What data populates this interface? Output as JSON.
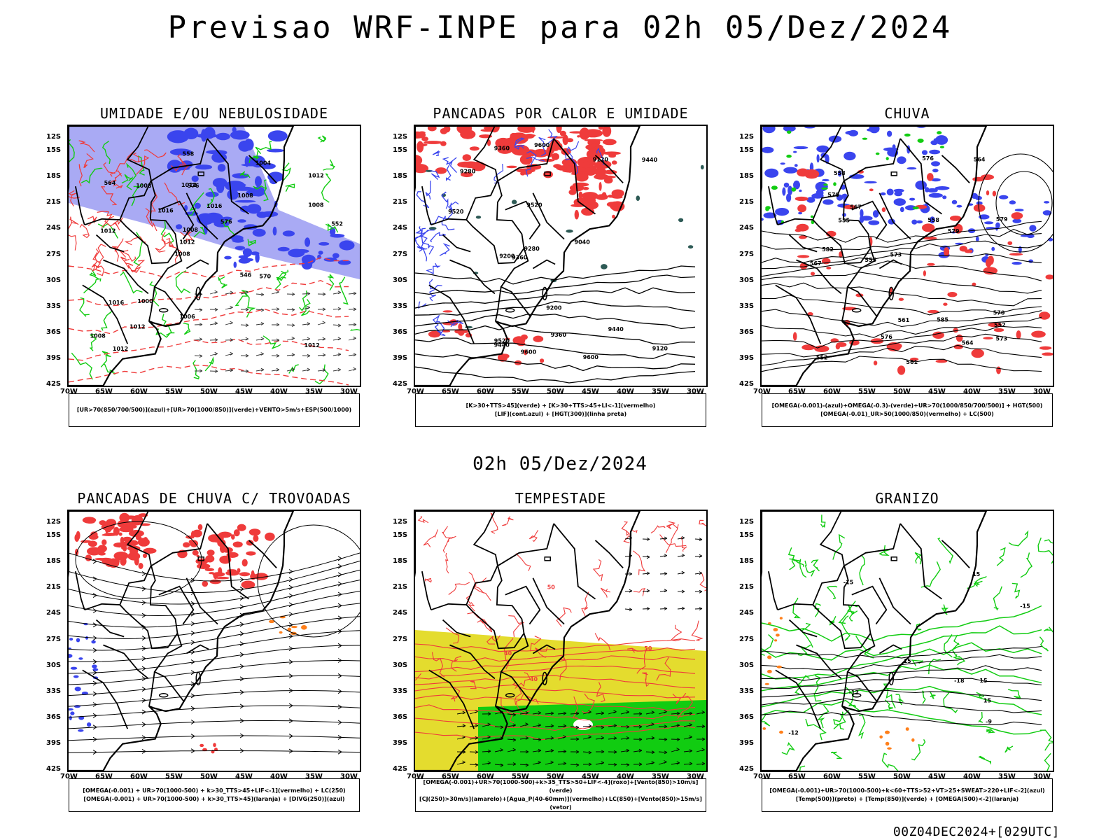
{
  "header": {
    "title": "Previsao WRF-INPE  para 02h 05/Dez/2024"
  },
  "mid_title": "02h 05/Dez/2024",
  "footer": "00Z04DEC2024+[029UTC]",
  "axes": {
    "y_labels": [
      "12S",
      "15S",
      "18S",
      "21S",
      "24S",
      "27S",
      "30S",
      "33S",
      "36S",
      "39S",
      "42S"
    ],
    "x_labels": [
      "70W",
      "65W",
      "60W",
      "55W",
      "50W",
      "45W",
      "40W",
      "35W",
      "30W"
    ]
  },
  "panels": [
    {
      "id": "umidade",
      "title": "UMIDADE E/OU NEBULOSIDADE",
      "legend": [
        "[UR>70(850/700/500)](azul)+[UR>70(1000/850)](verde)+VENTO>5m/s+ESP(500/1000)"
      ],
      "contour_labels": [
        "1012",
        "1012",
        "1012",
        "1008",
        "1008",
        "1012",
        "1012",
        "1016",
        "1016",
        "1016",
        "1008",
        "1012",
        "576",
        "576",
        "570",
        "564",
        "558",
        "552",
        "546",
        "1008",
        "1012",
        "1006",
        "1008",
        "1008",
        "1004",
        "1000"
      ]
    },
    {
      "id": "pancadas_calor",
      "title": "PANCADAS POR CALOR E UMIDADE",
      "legend": [
        "[K>30+TTS>45](verde) + [K>30+TTS>45+LI<-1](vermelho)",
        "[LIF](cont.azul) + [HGT(300)](linha preta)"
      ],
      "contour_labels": [
        "9600",
        "9600",
        "9520",
        "9440",
        "9360",
        "9280",
        "9200",
        "9120",
        "9600",
        "9520",
        "9440",
        "9360",
        "9280",
        "9200",
        "9120",
        "9040",
        "9520",
        "9440",
        "9360"
      ]
    },
    {
      "id": "chuva",
      "title": "CHUVA",
      "legend": [
        "[OMEGA(-0.001)-(azul)+OMEGA(-0.3)-(verde)+UR>70(1000/850/700/500)] + HGT(500)",
        "[OMEGA(-0.01)_UR>50(1000/850)(vermelho) + LC(500)"
      ],
      "contour_labels": [
        "585",
        "582",
        "579",
        "576",
        "573",
        "570",
        "567",
        "564",
        "561",
        "558",
        "555",
        "552",
        "579",
        "576",
        "573",
        "570",
        "567",
        "564",
        "561",
        "558",
        "555",
        "552"
      ]
    },
    {
      "id": "trovoadas",
      "title": "PANCADAS DE CHUVA C/ TROVOADAS",
      "legend": [
        "[OMEGA(-0.001) + UR>70(1000-500) + k>30_TTS>45+LIF<-1](vermelho) + LC(250)",
        "[OMEGA(-0.001) + UR>70(1000-500) + k>30_TTS>45](laranja) + [DIVG(250)](azul)"
      ],
      "contour_labels": []
    },
    {
      "id": "tempestade",
      "title": "TEMPESTADE",
      "legend": [
        "[OMEGA(-0.001)+UR>70(1000-500)+k>35_TTS>50+LIF<-4](roxo)+[Vento(850)>10m/s](verde)",
        "[CJ(250)>30m/s](amarelo)+[Agua_P(40-60mm)](vermelho)+LC(850)+[Vento(850)>15m/s](vetor)"
      ],
      "contour_labels": [
        "40",
        "40",
        "50",
        "50"
      ]
    },
    {
      "id": "granizo",
      "title": "GRANIZO",
      "legend": [
        "[OMEGA(-0.001)+UR>70(1000-500)+k<60+TTS>52+VT>25+SWEAT>220+LIF<-2](azul)",
        "[Temp(500)](preto) + [Temp(850)](verde) + [OMEGA(500)<-2](laranja)"
      ],
      "contour_labels": [
        "-9",
        "-12",
        "-15",
        "-12",
        "-15",
        "-18",
        "15",
        "15",
        "15",
        "15"
      ]
    }
  ],
  "colors": {
    "blue": "#3a45ee",
    "lightblue": "#a9aaf4",
    "red": "#ef3b3b",
    "green": "#11cc11",
    "yellow": "#e4dc2e",
    "orange": "#ff7f1a",
    "darkteal": "#2d5a55"
  }
}
